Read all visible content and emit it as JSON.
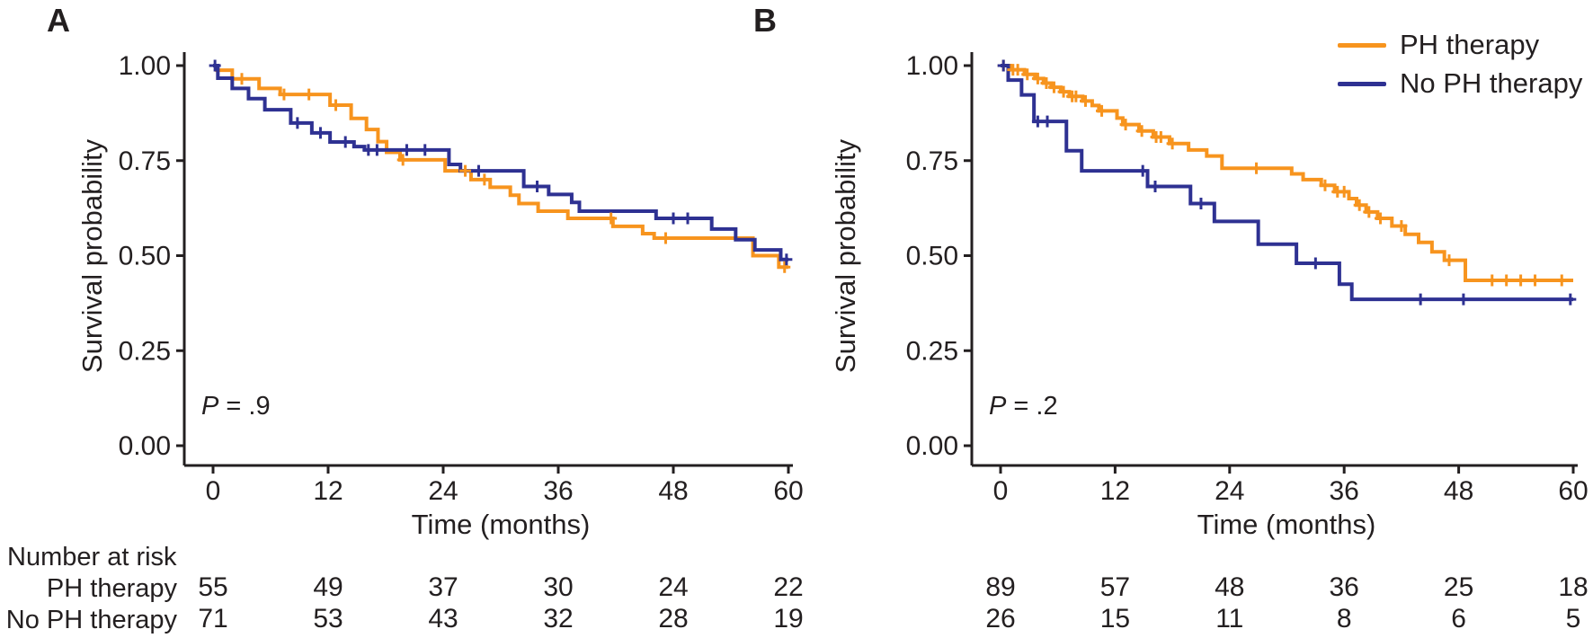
{
  "figure": {
    "panels": [
      {
        "label": "A"
      },
      {
        "label": "B"
      }
    ],
    "number_at_risk_title": "Number at risk",
    "risk_row_labels": [
      "PH therapy",
      "No PH therapy"
    ]
  },
  "legend": {
    "position": "top-right",
    "items": [
      {
        "label": "PH therapy",
        "color": "#F7941E"
      },
      {
        "label": "No PH therapy",
        "color": "#2E3192"
      }
    ]
  },
  "colors": {
    "ph_therapy": "#F7941E",
    "no_ph_therapy": "#2E3192",
    "axis": "#231f20",
    "text": "#231f20"
  },
  "chart_data": [
    {
      "type": "line",
      "subtype": "kaplan_meier_step",
      "title": "A",
      "xlabel": "Time (months)",
      "ylabel": "Survival probability",
      "xlim": [
        0,
        60
      ],
      "ylim": [
        0.0,
        1.0
      ],
      "xticks": [
        0,
        12,
        24,
        36,
        48,
        60
      ],
      "ytick_labels": [
        "1.00",
        "0.75",
        "0.50",
        "0.25",
        "0.00"
      ],
      "ytick_values": [
        1.0,
        0.75,
        0.5,
        0.25,
        0.0
      ],
      "grid": false,
      "p_symbol": "P",
      "p_rest": " = .9",
      "series": [
        {
          "name": "PH therapy",
          "color": "#F7941E",
          "steps": [
            [
              0,
              1.0
            ],
            [
              0.4,
              0.988
            ],
            [
              2,
              0.965
            ],
            [
              4.8,
              0.94
            ],
            [
              7,
              0.924
            ],
            [
              12.2,
              0.896
            ],
            [
              14.4,
              0.861
            ],
            [
              16,
              0.832
            ],
            [
              17.2,
              0.8
            ],
            [
              18.1,
              0.772
            ],
            [
              19.5,
              0.752
            ],
            [
              24.2,
              0.723
            ],
            [
              26.9,
              0.7
            ],
            [
              28.9,
              0.68
            ],
            [
              31,
              0.659
            ],
            [
              31.9,
              0.637
            ],
            [
              33.9,
              0.617
            ],
            [
              37,
              0.598
            ],
            [
              41.7,
              0.577
            ],
            [
              44.8,
              0.558
            ],
            [
              46,
              0.546
            ],
            [
              56.3,
              0.5
            ],
            [
              59,
              0.47
            ]
          ],
          "censors": [
            [
              3,
              0.965
            ],
            [
              7.4,
              0.924
            ],
            [
              10,
              0.924
            ],
            [
              12.8,
              0.896
            ],
            [
              19.8,
              0.752
            ],
            [
              26.3,
              0.723
            ],
            [
              28.3,
              0.7
            ],
            [
              41.5,
              0.598
            ],
            [
              47.2,
              0.546
            ],
            [
              59.6,
              0.47
            ]
          ]
        },
        {
          "name": "No PH therapy",
          "color": "#2E3192",
          "steps": [
            [
              0,
              1.0
            ],
            [
              0.5,
              0.967
            ],
            [
              2,
              0.94
            ],
            [
              3.7,
              0.913
            ],
            [
              5.4,
              0.884
            ],
            [
              8.1,
              0.849
            ],
            [
              10.3,
              0.823
            ],
            [
              12.2,
              0.799
            ],
            [
              14.7,
              0.787
            ],
            [
              15.8,
              0.778
            ],
            [
              24.6,
              0.74
            ],
            [
              25.8,
              0.723
            ],
            [
              32.4,
              0.682
            ],
            [
              35,
              0.661
            ],
            [
              37.4,
              0.64
            ],
            [
              38.2,
              0.617
            ],
            [
              46.2,
              0.598
            ],
            [
              52,
              0.57
            ],
            [
              54.5,
              0.542
            ],
            [
              56.5,
              0.515
            ],
            [
              59.2,
              0.49
            ]
          ],
          "censors": [
            [
              0.2,
              1.0
            ],
            [
              8.8,
              0.849
            ],
            [
              11.2,
              0.823
            ],
            [
              13.8,
              0.799
            ],
            [
              16.2,
              0.778
            ],
            [
              17.1,
              0.778
            ],
            [
              20.2,
              0.778
            ],
            [
              22.1,
              0.778
            ],
            [
              27.7,
              0.723
            ],
            [
              33.8,
              0.682
            ],
            [
              48,
              0.598
            ],
            [
              49.5,
              0.598
            ],
            [
              59.8,
              0.49
            ]
          ]
        }
      ],
      "number_at_risk": {
        "times": [
          0,
          12,
          24,
          36,
          48,
          60
        ],
        "rows": [
          {
            "name": "PH therapy",
            "counts": [
              55,
              49,
              37,
              30,
              24,
              22
            ]
          },
          {
            "name": "No PH therapy",
            "counts": [
              71,
              53,
              43,
              32,
              28,
              19
            ]
          }
        ]
      }
    },
    {
      "type": "line",
      "subtype": "kaplan_meier_step",
      "title": "B",
      "xlabel": "Time (months)",
      "ylabel": "Survival probability",
      "xlim": [
        0,
        60
      ],
      "ylim": [
        0.0,
        1.0
      ],
      "xticks": [
        0,
        12,
        24,
        36,
        48,
        60
      ],
      "ytick_labels": [
        "1.00",
        "0.75",
        "0.50",
        "0.25",
        "0.00"
      ],
      "ytick_values": [
        1.0,
        0.75,
        0.5,
        0.25,
        0.0
      ],
      "grid": false,
      "p_symbol": "P",
      "p_rest": " = .2",
      "series": [
        {
          "name": "PH therapy",
          "color": "#F7941E",
          "steps": [
            [
              0,
              1.0
            ],
            [
              1,
              0.989
            ],
            [
              2.5,
              0.977
            ],
            [
              3.6,
              0.966
            ],
            [
              4.5,
              0.954
            ],
            [
              5.3,
              0.943
            ],
            [
              6.3,
              0.931
            ],
            [
              7.2,
              0.919
            ],
            [
              8.6,
              0.907
            ],
            [
              9.6,
              0.895
            ],
            [
              10.3,
              0.881
            ],
            [
              12.2,
              0.862
            ],
            [
              12.8,
              0.845
            ],
            [
              14.5,
              0.828
            ],
            [
              16,
              0.812
            ],
            [
              17.7,
              0.795
            ],
            [
              19.7,
              0.778
            ],
            [
              21.6,
              0.762
            ],
            [
              23.2,
              0.73
            ],
            [
              30.5,
              0.715
            ],
            [
              31.7,
              0.7
            ],
            [
              33.6,
              0.685
            ],
            [
              35,
              0.668
            ],
            [
              36.5,
              0.65
            ],
            [
              37.3,
              0.633
            ],
            [
              38.3,
              0.615
            ],
            [
              39.5,
              0.598
            ],
            [
              41,
              0.578
            ],
            [
              42.4,
              0.556
            ],
            [
              43.8,
              0.535
            ],
            [
              45.2,
              0.51
            ],
            [
              46.5,
              0.488
            ],
            [
              48.7,
              0.435
            ]
          ],
          "censors": [
            [
              0.3,
              1.0
            ],
            [
              1.3,
              0.989
            ],
            [
              1.8,
              0.989
            ],
            [
              2.8,
              0.977
            ],
            [
              3.9,
              0.966
            ],
            [
              4.8,
              0.954
            ],
            [
              5.6,
              0.943
            ],
            [
              6.6,
              0.931
            ],
            [
              7.5,
              0.919
            ],
            [
              7.9,
              0.919
            ],
            [
              8.9,
              0.907
            ],
            [
              10.6,
              0.881
            ],
            [
              13.1,
              0.845
            ],
            [
              14.8,
              0.828
            ],
            [
              16.3,
              0.812
            ],
            [
              16.8,
              0.812
            ],
            [
              18,
              0.795
            ],
            [
              26.8,
              0.73
            ],
            [
              34,
              0.685
            ],
            [
              35.3,
              0.668
            ],
            [
              36,
              0.668
            ],
            [
              37.6,
              0.633
            ],
            [
              38.6,
              0.615
            ],
            [
              39.8,
              0.598
            ],
            [
              42,
              0.578
            ],
            [
              47,
              0.488
            ],
            [
              51.5,
              0.435
            ],
            [
              53,
              0.435
            ],
            [
              54.5,
              0.435
            ],
            [
              56,
              0.435
            ],
            [
              58.8,
              0.435
            ]
          ]
        },
        {
          "name": "No PH therapy",
          "color": "#2E3192",
          "steps": [
            [
              0,
              1.0
            ],
            [
              0.8,
              0.962
            ],
            [
              2.2,
              0.923
            ],
            [
              3.5,
              0.853
            ],
            [
              6.9,
              0.776
            ],
            [
              8.5,
              0.723
            ],
            [
              15.4,
              0.682
            ],
            [
              19.9,
              0.637
            ],
            [
              22.4,
              0.59
            ],
            [
              27,
              0.53
            ],
            [
              31,
              0.48
            ],
            [
              35.5,
              0.425
            ],
            [
              36.8,
              0.385
            ]
          ],
          "censors": [
            [
              0.3,
              1.0
            ],
            [
              3.9,
              0.853
            ],
            [
              4.9,
              0.853
            ],
            [
              14.9,
              0.723
            ],
            [
              16.2,
              0.682
            ],
            [
              21,
              0.637
            ],
            [
              33,
              0.48
            ],
            [
              44,
              0.385
            ],
            [
              48.5,
              0.385
            ],
            [
              59.7,
              0.385
            ]
          ]
        }
      ],
      "number_at_risk": {
        "times": [
          0,
          12,
          24,
          36,
          48,
          60
        ],
        "rows": [
          {
            "name": "PH therapy",
            "counts": [
              89,
              57,
              48,
              36,
              25,
              18
            ]
          },
          {
            "name": "No PH therapy",
            "counts": [
              26,
              15,
              11,
              8,
              6,
              5
            ]
          }
        ]
      }
    }
  ]
}
